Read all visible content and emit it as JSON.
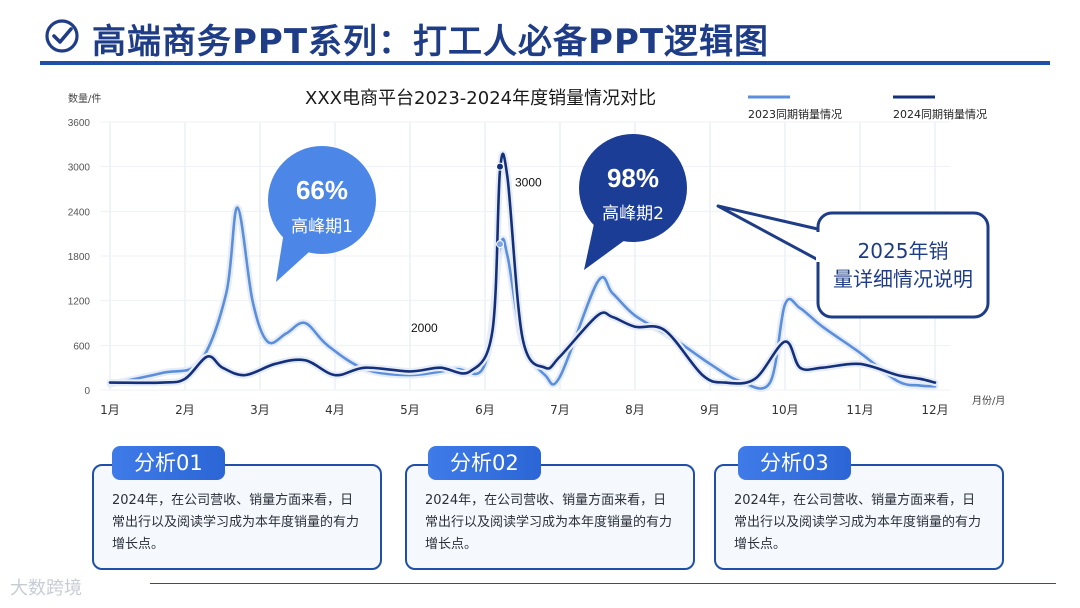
{
  "header": {
    "title": "高端商务PPT系列：打工人必备PPT逻辑图",
    "icon": "check-circle-icon"
  },
  "chart_data": {
    "type": "line",
    "title": "XXX电商平台2023-2024年度销量情况对比",
    "ylabel": "数量/件",
    "xlabel": "月份/月",
    "ylim": [
      0,
      3600
    ],
    "yticks": [
      0,
      600,
      1200,
      1800,
      2400,
      3000,
      3600
    ],
    "categories": [
      "1月",
      "2月",
      "3月",
      "4月",
      "5月",
      "6月",
      "7月",
      "8月",
      "9月",
      "10月",
      "11月",
      "12月"
    ],
    "grid": true,
    "legend_position": "top-right",
    "series": [
      {
        "name": "2023同期销量情况",
        "color": "#5b8fdb",
        "x": [
          1.0,
          1.7,
          2.2,
          2.55,
          2.7,
          2.9,
          3.1,
          3.35,
          3.6,
          3.9,
          4.4,
          5.0,
          5.6,
          6.0,
          6.2,
          6.3,
          6.5,
          6.8,
          7.0,
          7.5,
          7.7,
          8.0,
          8.5,
          9.0,
          9.4,
          9.8,
          10.0,
          10.2,
          10.5,
          11.0,
          11.5,
          11.8,
          12.0
        ],
        "values": [
          80,
          230,
          380,
          1300,
          2450,
          1200,
          650,
          760,
          900,
          600,
          280,
          200,
          280,
          350,
          1900,
          1800,
          650,
          200,
          180,
          1450,
          1300,
          1000,
          700,
          350,
          120,
          100,
          1150,
          1100,
          850,
          500,
          120,
          60,
          50
        ]
      },
      {
        "name": "2024同期销量情况",
        "color": "#15307a",
        "x": [
          1.0,
          1.7,
          2.0,
          2.3,
          2.5,
          2.8,
          3.2,
          3.6,
          4.0,
          4.4,
          5.0,
          5.4,
          5.8,
          6.1,
          6.2,
          6.3,
          6.5,
          6.8,
          7.0,
          7.5,
          7.7,
          8.0,
          8.4,
          8.9,
          9.2,
          9.6,
          10.0,
          10.2,
          10.5,
          11.0,
          11.5,
          11.8,
          12.0
        ],
        "values": [
          100,
          100,
          150,
          450,
          300,
          200,
          350,
          400,
          200,
          300,
          250,
          300,
          250,
          800,
          2950,
          2850,
          700,
          300,
          450,
          1000,
          980,
          850,
          800,
          200,
          100,
          150,
          650,
          300,
          300,
          350,
          200,
          150,
          100
        ]
      }
    ],
    "annotations": [
      {
        "label": "3000",
        "x": 6.2,
        "y": 3000
      },
      {
        "label": "2000",
        "x": 6.2,
        "y": 2000
      }
    ],
    "callouts": [
      {
        "percent": "66%",
        "label": "高峰期1"
      },
      {
        "percent": "98%",
        "label": "高峰期2"
      },
      {
        "text": "2025年销量详细情况说明"
      }
    ]
  },
  "cards": [
    {
      "tag": "分析01",
      "text": "2024年，在公司营收、销量方面来看，日常出行以及阅读学习成为本年度销量的有力增长点。"
    },
    {
      "tag": "分析02",
      "text": "2024年，在公司营收、销量方面来看，日常出行以及阅读学习成为本年度销量的有力增长点。"
    },
    {
      "tag": "分析03",
      "text": "2024年，在公司营收、销量方面来看，日常出行以及阅读学习成为本年度销量的有力增长点。"
    }
  ],
  "watermark": "大数跨境"
}
